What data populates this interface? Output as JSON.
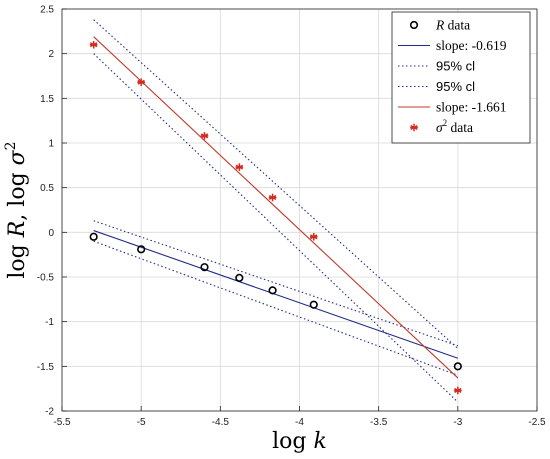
{
  "chart_data": {
    "type": "scatter",
    "xlabel": "log k",
    "ylabel": "log R, log σ²",
    "xlim": [
      -5.5,
      -2.5
    ],
    "ylim": [
      -2,
      2.5
    ],
    "x_ticks": [
      -5.5,
      -5,
      -4.5,
      -4,
      -3.5,
      -3,
      -2.5
    ],
    "x_tick_labels": [
      "-5.5",
      "-5",
      "-4.5",
      "-4",
      "-3.5",
      "-3",
      "-2.5"
    ],
    "y_ticks": [
      -2,
      -1.5,
      -1,
      -0.5,
      0,
      0.5,
      1,
      1.5,
      2,
      2.5
    ],
    "y_tick_labels": [
      "-2",
      "-1.5",
      "-1",
      "-0.5",
      "0",
      "0.5",
      "1",
      "1.5",
      "2",
      "2.5"
    ],
    "grid": true,
    "legend_position": "top-right",
    "series": [
      {
        "name": "R data",
        "kind": "scatter",
        "marker": "circle",
        "color": "#000000",
        "x": [
          -5.3,
          -5.0,
          -4.6,
          -4.38,
          -4.17,
          -3.91,
          -3.0
        ],
        "y": [
          -0.05,
          -0.19,
          -0.39,
          -0.51,
          -0.65,
          -0.81,
          -1.5
        ]
      },
      {
        "name": "slope: -0.619",
        "kind": "line",
        "color": "#1f2d8a",
        "x": [
          -5.3,
          -3.0
        ],
        "y": [
          0.02,
          -1.41
        ]
      },
      {
        "name": "95% cl",
        "kind": "dotted",
        "color": "#1f2d8a",
        "lines": [
          {
            "x": [
              -5.3,
              -3.0
            ],
            "y": [
              0.13,
              -1.27
            ]
          },
          {
            "x": [
              -5.3,
              -3.0
            ],
            "y": [
              -0.1,
              -1.6
            ]
          }
        ]
      },
      {
        "name": "95% cl",
        "kind": "dotted",
        "color": "#1f2d8a",
        "lines": [
          {
            "x": [
              -5.3,
              -3.0
            ],
            "y": [
              2.38,
              -1.3
            ]
          },
          {
            "x": [
              -5.3,
              -3.0
            ],
            "y": [
              2.0,
              -1.9
            ]
          }
        ]
      },
      {
        "name": "slope: -1.661",
        "kind": "line",
        "color": "#c0392b",
        "x": [
          -5.3,
          -3.0
        ],
        "y": [
          2.19,
          -1.63
        ]
      },
      {
        "name": "σ² data",
        "kind": "scatter",
        "marker": "asterisk",
        "color": "#d62a1e",
        "x": [
          -5.3,
          -5.0,
          -4.6,
          -4.38,
          -4.17,
          -3.91,
          -3.0
        ],
        "y": [
          2.1,
          1.68,
          1.08,
          0.73,
          0.39,
          -0.05,
          -1.77
        ]
      }
    ],
    "legend": {
      "entries": [
        {
          "key": "R data",
          "label_var": "R",
          "label_text": " data",
          "icon": "circle",
          "color": "#000000"
        },
        {
          "key": "slope: -0.619",
          "label_text": "slope: -0.619",
          "icon": "line",
          "color": "#1f2d8a"
        },
        {
          "key": "95% cl",
          "label_text": "95% cl",
          "icon": "dotted",
          "color": "#1f2d8a",
          "sans": true
        },
        {
          "key": "95% cl",
          "label_text": "95% cl",
          "icon": "dotted",
          "color": "#1f2d8a",
          "sans": true
        },
        {
          "key": "slope: -1.661",
          "label_text": "slope: -1.661",
          "icon": "line",
          "color": "#c0392b"
        },
        {
          "key": "σ² data",
          "label_var": "σ²",
          "label_text": " data",
          "icon": "asterisk",
          "color": "#d62a1e"
        }
      ]
    }
  }
}
